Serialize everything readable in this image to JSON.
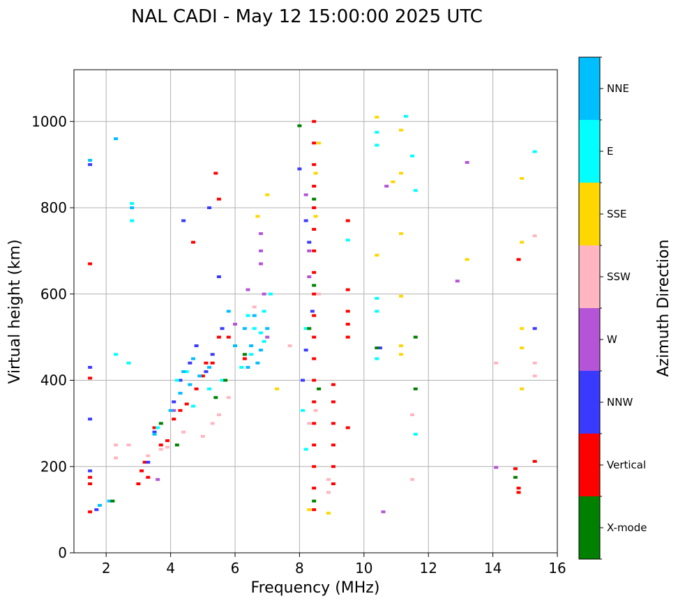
{
  "chart_data": {
    "type": "scatter",
    "title": "NAL CADI - May 12 15:00:00 2025 UTC",
    "xlabel": "Frequency (MHz)",
    "ylabel": "Virtual height (km)",
    "xlim": [
      1,
      16
    ],
    "ylim": [
      0,
      1120
    ],
    "xticks": [
      2,
      4,
      6,
      8,
      10,
      12,
      14,
      16
    ],
    "yticks": [
      0,
      200,
      400,
      600,
      800,
      1000
    ],
    "grid": true,
    "colorbar": {
      "label": "Azimuth Direction",
      "categories": [
        "X-mode",
        "Vertical",
        "NNW",
        "W",
        "SSW",
        "SSE",
        "E",
        "NNE"
      ],
      "colors": [
        "#008000",
        "#ff0000",
        "#3a3aff",
        "#b355d6",
        "#ffb6c1",
        "#ffd700",
        "#00ffff",
        "#00bfff"
      ]
    },
    "series": [
      {
        "name": "Vertical",
        "points": [
          [
            1.5,
            95
          ],
          [
            1.5,
            160
          ],
          [
            1.5,
            175
          ],
          [
            1.5,
            670
          ],
          [
            1.5,
            405
          ],
          [
            3.0,
            160
          ],
          [
            3.1,
            190
          ],
          [
            3.2,
            210
          ],
          [
            3.3,
            175
          ],
          [
            3.5,
            290
          ],
          [
            3.7,
            250
          ],
          [
            3.9,
            260
          ],
          [
            4.1,
            310
          ],
          [
            4.3,
            330
          ],
          [
            4.5,
            345
          ],
          [
            4.8,
            380
          ],
          [
            5.0,
            410
          ],
          [
            5.3,
            440
          ],
          [
            5.5,
            500
          ],
          [
            5.4,
            880
          ],
          [
            5.5,
            820
          ],
          [
            4.7,
            720
          ],
          [
            5.1,
            440
          ],
          [
            5.8,
            500
          ],
          [
            6.3,
            450
          ],
          [
            8.45,
            100
          ],
          [
            8.45,
            150
          ],
          [
            8.45,
            200
          ],
          [
            8.45,
            250
          ],
          [
            8.45,
            300
          ],
          [
            8.45,
            350
          ],
          [
            8.45,
            400
          ],
          [
            8.45,
            450
          ],
          [
            8.45,
            500
          ],
          [
            8.45,
            550
          ],
          [
            8.45,
            600
          ],
          [
            8.45,
            650
          ],
          [
            8.45,
            700
          ],
          [
            8.45,
            750
          ],
          [
            8.45,
            800
          ],
          [
            8.45,
            850
          ],
          [
            8.45,
            900
          ],
          [
            8.45,
            950
          ],
          [
            8.45,
            1000
          ],
          [
            9.05,
            200
          ],
          [
            9.05,
            250
          ],
          [
            9.05,
            300
          ],
          [
            9.05,
            350
          ],
          [
            9.05,
            390
          ],
          [
            9.05,
            160
          ],
          [
            9.5,
            290
          ],
          [
            9.5,
            500
          ],
          [
            9.5,
            530
          ],
          [
            9.5,
            560
          ],
          [
            9.5,
            610
          ],
          [
            9.5,
            770
          ],
          [
            14.8,
            140
          ],
          [
            14.8,
            150
          ],
          [
            14.7,
            195
          ],
          [
            14.8,
            680
          ],
          [
            15.3,
            212
          ]
        ]
      },
      {
        "name": "NNW",
        "points": [
          [
            1.5,
            900
          ],
          [
            1.5,
            430
          ],
          [
            1.5,
            310
          ],
          [
            1.5,
            190
          ],
          [
            1.7,
            100
          ],
          [
            3.3,
            210
          ],
          [
            3.5,
            280
          ],
          [
            4.1,
            350
          ],
          [
            4.3,
            400
          ],
          [
            4.6,
            440
          ],
          [
            4.8,
            480
          ],
          [
            5.1,
            420
          ],
          [
            5.3,
            460
          ],
          [
            5.6,
            520
          ],
          [
            5.5,
            640
          ],
          [
            5.2,
            800
          ],
          [
            4.4,
            770
          ],
          [
            8.0,
            890
          ],
          [
            8.2,
            770
          ],
          [
            8.3,
            720
          ],
          [
            8.4,
            560
          ],
          [
            8.2,
            470
          ],
          [
            8.1,
            400
          ],
          [
            15.3,
            520
          ],
          [
            10.5,
            475
          ]
        ]
      },
      {
        "name": "W",
        "points": [
          [
            3.6,
            170
          ],
          [
            6.0,
            530
          ],
          [
            6.8,
            670
          ],
          [
            6.8,
            700
          ],
          [
            6.8,
            740
          ],
          [
            6.4,
            610
          ],
          [
            6.9,
            600
          ],
          [
            7.0,
            500
          ],
          [
            8.3,
            640
          ],
          [
            8.3,
            700
          ],
          [
            8.2,
            830
          ],
          [
            10.7,
            850
          ],
          [
            10.6,
            95
          ],
          [
            12.9,
            630
          ],
          [
            13.2,
            905
          ],
          [
            14.1,
            198
          ],
          [
            4.1,
            330
          ]
        ]
      },
      {
        "name": "SSW",
        "points": [
          [
            2.3,
            250
          ],
          [
            2.3,
            220
          ],
          [
            2.7,
            250
          ],
          [
            3.3,
            225
          ],
          [
            3.7,
            240
          ],
          [
            3.9,
            245
          ],
          [
            4.4,
            280
          ],
          [
            5.0,
            270
          ],
          [
            5.3,
            300
          ],
          [
            5.5,
            320
          ],
          [
            5.8,
            360
          ],
          [
            6.6,
            570
          ],
          [
            7.7,
            480
          ],
          [
            8.3,
            300
          ],
          [
            8.5,
            330
          ],
          [
            8.6,
            600
          ],
          [
            8.9,
            140
          ],
          [
            8.9,
            170
          ],
          [
            15.3,
            410
          ],
          [
            15.3,
            440
          ],
          [
            15.3,
            735
          ],
          [
            14.1,
            440
          ],
          [
            11.5,
            170
          ],
          [
            11.5,
            320
          ]
        ]
      },
      {
        "name": "SSE",
        "points": [
          [
            7.0,
            830
          ],
          [
            6.7,
            780
          ],
          [
            7.3,
            380
          ],
          [
            8.6,
            950
          ],
          [
            8.3,
            100
          ],
          [
            8.9,
            92
          ],
          [
            10.4,
            1010
          ],
          [
            10.4,
            690
          ],
          [
            10.9,
            860
          ],
          [
            11.15,
            460
          ],
          [
            11.15,
            480
          ],
          [
            11.15,
            740
          ],
          [
            11.15,
            880
          ],
          [
            11.15,
            980
          ],
          [
            11.15,
            595
          ],
          [
            13.2,
            680
          ],
          [
            14.9,
            380
          ],
          [
            14.9,
            475
          ],
          [
            14.9,
            520
          ],
          [
            14.9,
            720
          ],
          [
            14.9,
            868
          ],
          [
            8.5,
            780
          ],
          [
            8.5,
            880
          ]
        ]
      },
      {
        "name": "E",
        "points": [
          [
            2.3,
            460
          ],
          [
            2.7,
            440
          ],
          [
            2.8,
            810
          ],
          [
            2.8,
            770
          ],
          [
            3.6,
            290
          ],
          [
            4.2,
            400
          ],
          [
            4.5,
            420
          ],
          [
            5.2,
            380
          ],
          [
            6.2,
            430
          ],
          [
            6.5,
            460
          ],
          [
            6.8,
            510
          ],
          [
            6.6,
            520
          ],
          [
            6.9,
            490
          ],
          [
            6.4,
            550
          ],
          [
            6.9,
            560
          ],
          [
            7.1,
            600
          ],
          [
            8.2,
            240
          ],
          [
            8.1,
            330
          ],
          [
            8.2,
            520
          ],
          [
            9.5,
            725
          ],
          [
            10.4,
            560
          ],
          [
            10.4,
            590
          ],
          [
            10.4,
            450
          ],
          [
            10.4,
            975
          ],
          [
            10.4,
            945
          ],
          [
            11.3,
            1012
          ],
          [
            11.5,
            920
          ],
          [
            11.6,
            840
          ],
          [
            11.6,
            275
          ],
          [
            15.3,
            930
          ],
          [
            4.7,
            340
          ],
          [
            5.6,
            400
          ]
        ]
      },
      {
        "name": "NNE",
        "points": [
          [
            1.5,
            910
          ],
          [
            2.3,
            960
          ],
          [
            2.8,
            800
          ],
          [
            3.5,
            275
          ],
          [
            4.0,
            330
          ],
          [
            4.3,
            370
          ],
          [
            4.6,
            390
          ],
          [
            4.9,
            410
          ],
          [
            4.4,
            420
          ],
          [
            4.7,
            450
          ],
          [
            5.2,
            430
          ],
          [
            5.8,
            560
          ],
          [
            6.0,
            480
          ],
          [
            6.5,
            480
          ],
          [
            6.4,
            430
          ],
          [
            6.7,
            440
          ],
          [
            6.8,
            470
          ],
          [
            7.0,
            520
          ],
          [
            6.3,
            520
          ],
          [
            6.6,
            550
          ],
          [
            1.8,
            110
          ],
          [
            2.1,
            120
          ]
        ]
      },
      {
        "name": "X-mode",
        "points": [
          [
            2.2,
            120
          ],
          [
            3.7,
            300
          ],
          [
            4.2,
            250
          ],
          [
            5.4,
            360
          ],
          [
            5.7,
            400
          ],
          [
            6.3,
            460
          ],
          [
            8.0,
            990
          ],
          [
            8.3,
            520
          ],
          [
            8.6,
            380
          ],
          [
            8.45,
            120
          ],
          [
            8.45,
            620
          ],
          [
            8.45,
            820
          ],
          [
            14.7,
            175
          ],
          [
            10.4,
            475
          ],
          [
            11.6,
            500
          ],
          [
            11.6,
            380
          ]
        ]
      }
    ]
  }
}
